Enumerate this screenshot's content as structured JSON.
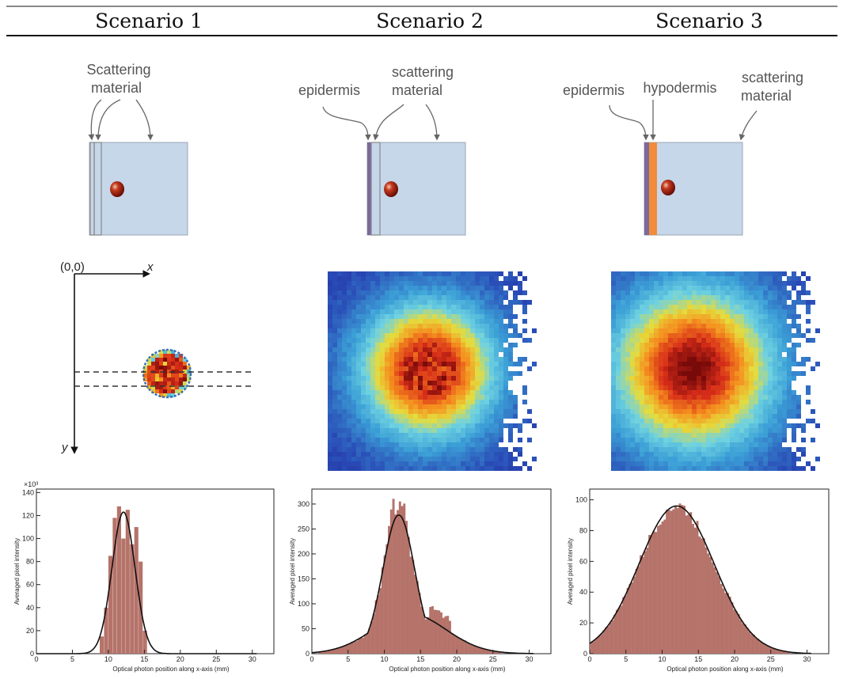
{
  "header": {
    "scenario1": "Scenario 1",
    "scenario2": "Scenario 2",
    "scenario3": "Scenario 3"
  },
  "diagrams": {
    "s1": {
      "label_line1": "Scattering",
      "label_line2": "material"
    },
    "s2": {
      "epidermis": "epidermis",
      "label_line1": "scattering",
      "label_line2": "material"
    },
    "s3": {
      "epidermis": "epidermis",
      "hypodermis": "hypodermis",
      "label_line1": "scattering",
      "label_line2": "material"
    }
  },
  "coord_system": {
    "origin": "(0,0)",
    "x": "x",
    "y": "y"
  },
  "colors": {
    "material": "#c6d7ea",
    "epidermis": "#7b6a9a",
    "hypodermis": "#f08c3a",
    "histogram": "#b5736a",
    "fit": "#111111"
  },
  "chart_data": [
    {
      "type": "bar",
      "ylabel": "Averaged pixel intensity",
      "xlabel": "Optical photon position along x-axis (mm)",
      "y_multiplier": "×10³",
      "xlim": [
        0,
        33
      ],
      "ylim": [
        0,
        143
      ],
      "x_ticks": [
        0,
        5,
        10,
        15,
        20,
        25,
        30
      ],
      "y_ticks": [
        0,
        20,
        40,
        60,
        80,
        100,
        120,
        140
      ],
      "histogram": {
        "x": [
          8.8,
          9.4,
          10.0,
          10.6,
          11.2,
          11.8,
          12.4,
          13.0,
          13.6,
          14.2,
          14.8
        ],
        "values": [
          15,
          40,
          85,
          118,
          128,
          100,
          125,
          95,
          110,
          80,
          20
        ]
      },
      "fit": {
        "amplitude": 123,
        "mean": 12.1,
        "sigma": 1.6
      }
    },
    {
      "type": "bar",
      "ylabel": "Averaged pixel intensity",
      "xlabel": "Optical photon position along x-axis (mm)",
      "xlim": [
        0,
        33
      ],
      "ylim": [
        0,
        330
      ],
      "x_ticks": [
        0,
        5,
        10,
        15,
        20,
        25,
        30
      ],
      "y_ticks": [
        0,
        50,
        100,
        150,
        200,
        250,
        300
      ],
      "fit": {
        "amplitude": 278,
        "mean": 12.0,
        "sigma": 2.2,
        "wide_amplitude": 80,
        "wide_sigma": 5.0
      }
    },
    {
      "type": "bar",
      "ylabel": "Averaged pixel intensity",
      "xlabel": "Optical photon position along x-axis (mm)",
      "xlim": [
        0,
        33
      ],
      "ylim": [
        0,
        107
      ],
      "x_ticks": [
        0,
        5,
        10,
        15,
        20,
        25,
        30
      ],
      "y_ticks": [
        0,
        20,
        40,
        60,
        80,
        100
      ],
      "fit": {
        "amplitude": 96,
        "mean": 12.0,
        "sigma": 5.2
      }
    }
  ]
}
